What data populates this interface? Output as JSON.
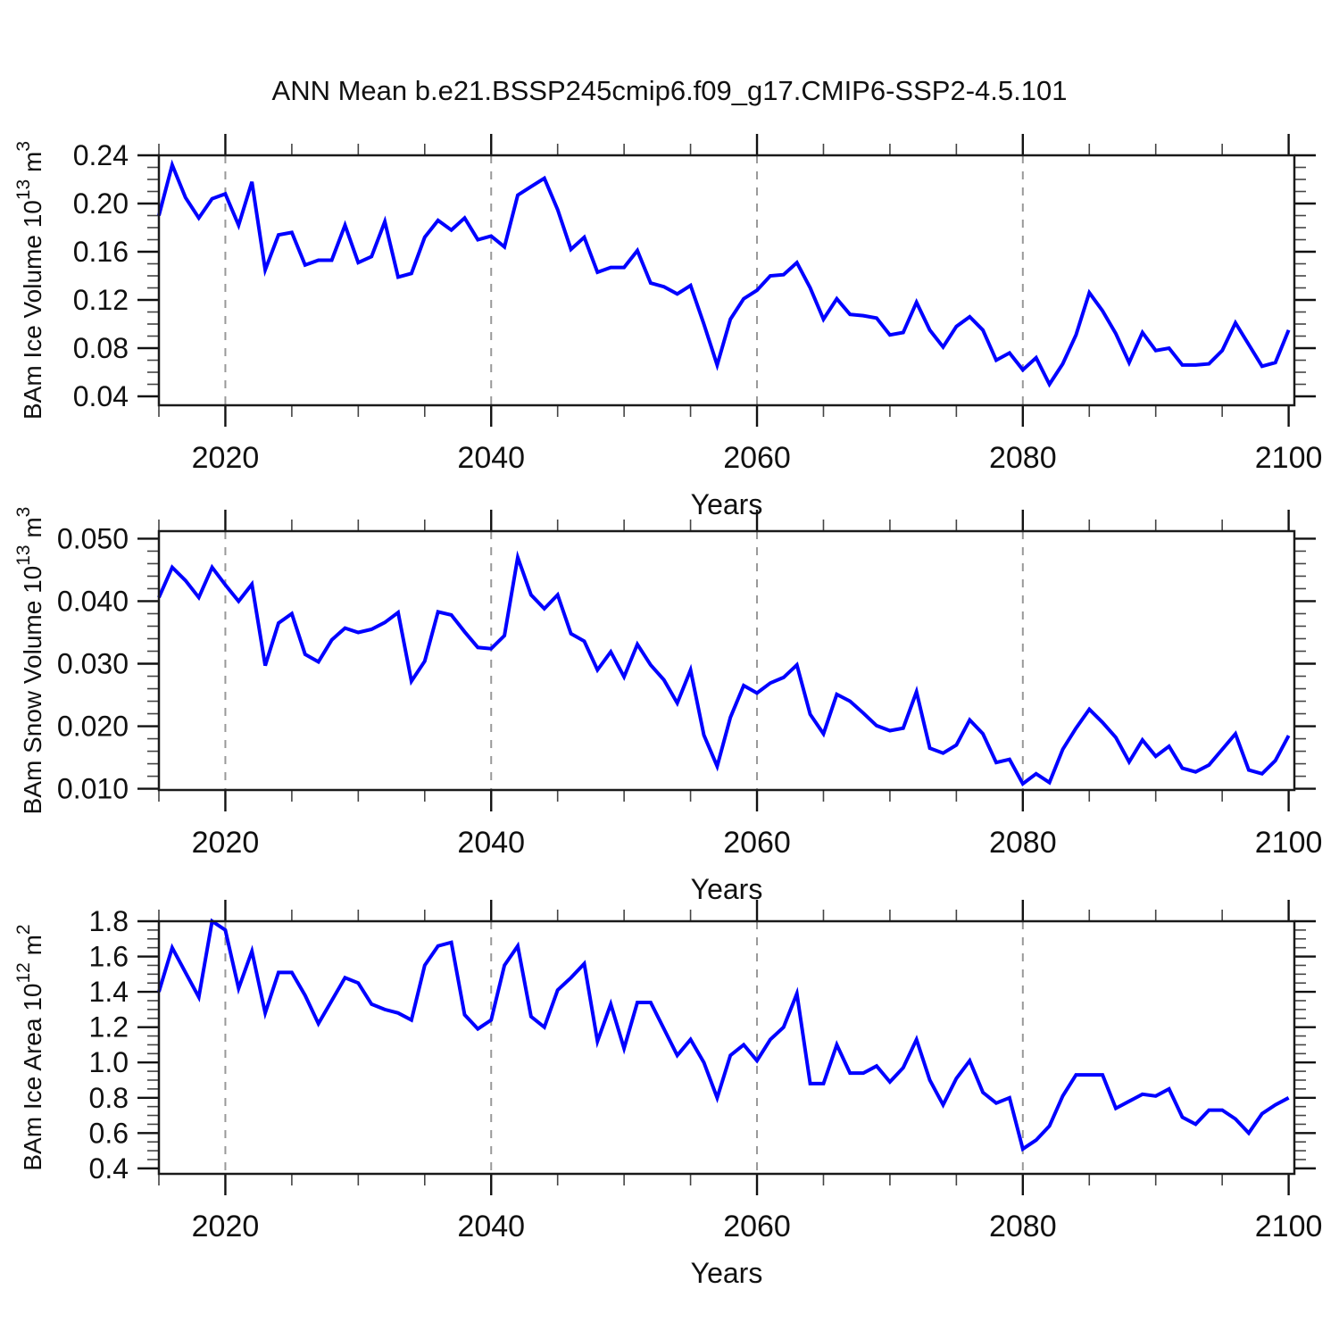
{
  "title": "ANN Mean b.e21.BSSP245cmip6.f09_g17.CMIP6-SSP2-4.5.101",
  "colors": {
    "line": "#0000ff",
    "frame": "#1a1a1a",
    "grid": "#999999",
    "major_tick": "#111111",
    "minor_tick": "#444444",
    "background": "#ffffff"
  },
  "years": [
    2015,
    2016,
    2017,
    2018,
    2019,
    2020,
    2021,
    2022,
    2023,
    2024,
    2025,
    2026,
    2027,
    2028,
    2029,
    2030,
    2031,
    2032,
    2033,
    2034,
    2035,
    2036,
    2037,
    2038,
    2039,
    2040,
    2041,
    2042,
    2043,
    2044,
    2045,
    2046,
    2047,
    2048,
    2049,
    2050,
    2051,
    2052,
    2053,
    2054,
    2055,
    2056,
    2057,
    2058,
    2059,
    2060,
    2061,
    2062,
    2063,
    2064,
    2065,
    2066,
    2067,
    2068,
    2069,
    2070,
    2071,
    2072,
    2073,
    2074,
    2075,
    2076,
    2077,
    2078,
    2079,
    2080,
    2081,
    2082,
    2083,
    2084,
    2085,
    2086,
    2087,
    2088,
    2089,
    2090,
    2091,
    2092,
    2093,
    2094,
    2095,
    2096,
    2097,
    2098,
    2099,
    2100
  ],
  "chart_data": [
    {
      "type": "line",
      "id": "ice-volume",
      "ylabel": "BAm Ice Volume 10^13 m^3",
      "ylabel_parts": [
        {
          "t": "BAm Ice Volume 10"
        },
        {
          "t": "13",
          "sup": true
        },
        {
          "t": " m"
        },
        {
          "t": "3",
          "sup": true
        }
      ],
      "xlabel": "Years",
      "legend": "none",
      "grid": "dashed vertical at 20-year marks",
      "xlim": [
        2015,
        2100.43
      ],
      "ylim": [
        0.0326,
        0.24
      ],
      "yticks": [
        0.04,
        0.08,
        0.12,
        0.16,
        0.2,
        0.24
      ],
      "ytick_decimals": 2,
      "yminor_step": 0.01,
      "xticks": [
        2020,
        2040,
        2060,
        2080,
        2100
      ],
      "xminor_step": 5,
      "grid_x": [
        2020,
        2040,
        2060,
        2080
      ],
      "values": [
        0.19,
        0.232,
        0.205,
        0.188,
        0.204,
        0.208,
        0.182,
        0.218,
        0.145,
        0.174,
        0.176,
        0.149,
        0.153,
        0.153,
        0.182,
        0.151,
        0.156,
        0.185,
        0.139,
        0.142,
        0.172,
        0.186,
        0.178,
        0.188,
        0.17,
        0.173,
        0.164,
        0.207,
        0.214,
        0.221,
        0.195,
        0.162,
        0.172,
        0.143,
        0.147,
        0.147,
        0.161,
        0.134,
        0.131,
        0.125,
        0.132,
        0.1,
        0.066,
        0.104,
        0.121,
        0.128,
        0.14,
        0.141,
        0.151,
        0.13,
        0.104,
        0.121,
        0.108,
        0.107,
        0.105,
        0.091,
        0.093,
        0.118,
        0.095,
        0.081,
        0.098,
        0.106,
        0.095,
        0.07,
        0.076,
        0.062,
        0.072,
        0.05,
        0.067,
        0.091,
        0.126,
        0.111,
        0.092,
        0.068,
        0.093,
        0.078,
        0.08,
        0.066,
        0.066,
        0.067,
        0.078,
        0.101,
        0.083,
        0.065,
        0.068,
        0.095
      ]
    },
    {
      "type": "line",
      "id": "snow-volume",
      "ylabel": "BAm Snow Volume 10^13 m^3",
      "ylabel_parts": [
        {
          "t": "BAm Snow Volume 10"
        },
        {
          "t": "13",
          "sup": true
        },
        {
          "t": " m"
        },
        {
          "t": "3",
          "sup": true
        }
      ],
      "xlabel": "Years",
      "legend": "none",
      "grid": "dashed vertical at 20-year marks",
      "xlim": [
        2015,
        2100.43
      ],
      "ylim": [
        0.0098,
        0.0512
      ],
      "yticks": [
        0.01,
        0.02,
        0.03,
        0.04,
        0.05
      ],
      "ytick_decimals": 3,
      "yminor_step": 0.002,
      "xticks": [
        2020,
        2040,
        2060,
        2080,
        2100
      ],
      "xminor_step": 5,
      "grid_x": [
        2020,
        2040,
        2060,
        2080
      ],
      "values": [
        0.0406,
        0.0454,
        0.0433,
        0.0406,
        0.0454,
        0.0426,
        0.04,
        0.0427,
        0.0297,
        0.0365,
        0.038,
        0.0315,
        0.0303,
        0.0338,
        0.0357,
        0.035,
        0.0355,
        0.0366,
        0.0382,
        0.0272,
        0.0304,
        0.0383,
        0.0378,
        0.0351,
        0.0326,
        0.0324,
        0.0345,
        0.047,
        0.041,
        0.0388,
        0.041,
        0.0348,
        0.0336,
        0.029,
        0.0319,
        0.0279,
        0.0331,
        0.0298,
        0.0274,
        0.0237,
        0.029,
        0.0186,
        0.0136,
        0.0214,
        0.0265,
        0.0253,
        0.0269,
        0.0278,
        0.0298,
        0.0219,
        0.0188,
        0.0251,
        0.024,
        0.0221,
        0.0201,
        0.0193,
        0.0197,
        0.0255,
        0.0165,
        0.0157,
        0.017,
        0.021,
        0.0188,
        0.0142,
        0.0147,
        0.0108,
        0.0124,
        0.011,
        0.0163,
        0.0197,
        0.0227,
        0.0206,
        0.0182,
        0.0143,
        0.0178,
        0.0152,
        0.0168,
        0.0133,
        0.0127,
        0.0138,
        0.0163,
        0.0188,
        0.013,
        0.0124,
        0.0145,
        0.0185
      ]
    },
    {
      "type": "line",
      "id": "ice-area",
      "ylabel": "BAm Ice Area 10^12 m^2",
      "ylabel_parts": [
        {
          "t": "BAm Ice Area 10"
        },
        {
          "t": "12",
          "sup": true
        },
        {
          "t": " m"
        },
        {
          "t": "2",
          "sup": true
        }
      ],
      "xlabel": "Years",
      "legend": "none",
      "grid": "dashed vertical at 20-year marks",
      "xlim": [
        2015,
        2100.43
      ],
      "ylim": [
        0.369,
        1.8
      ],
      "yticks": [
        0.4,
        0.6,
        0.8,
        1.0,
        1.2,
        1.4,
        1.6,
        1.8
      ],
      "ytick_decimals": 1,
      "yminor_step": 0.05,
      "xticks": [
        2020,
        2040,
        2060,
        2080,
        2100
      ],
      "xminor_step": 5,
      "grid_x": [
        2020,
        2040,
        2060,
        2080
      ],
      "values": [
        1.4,
        1.65,
        1.51,
        1.37,
        1.8,
        1.75,
        1.42,
        1.63,
        1.28,
        1.51,
        1.51,
        1.38,
        1.22,
        1.35,
        1.48,
        1.45,
        1.33,
        1.3,
        1.28,
        1.24,
        1.55,
        1.66,
        1.68,
        1.27,
        1.19,
        1.24,
        1.55,
        1.66,
        1.26,
        1.2,
        1.41,
        1.48,
        1.56,
        1.12,
        1.33,
        1.08,
        1.34,
        1.34,
        1.19,
        1.04,
        1.13,
        1.0,
        0.8,
        1.04,
        1.1,
        1.01,
        1.13,
        1.2,
        1.39,
        0.88,
        0.88,
        1.1,
        0.94,
        0.94,
        0.98,
        0.89,
        0.97,
        1.13,
        0.9,
        0.76,
        0.91,
        1.01,
        0.83,
        0.77,
        0.8,
        0.51,
        0.56,
        0.64,
        0.81,
        0.93,
        0.93,
        0.93,
        0.74,
        0.78,
        0.82,
        0.81,
        0.85,
        0.69,
        0.65,
        0.73,
        0.73,
        0.68,
        0.6,
        0.71,
        0.76,
        0.8
      ]
    }
  ]
}
